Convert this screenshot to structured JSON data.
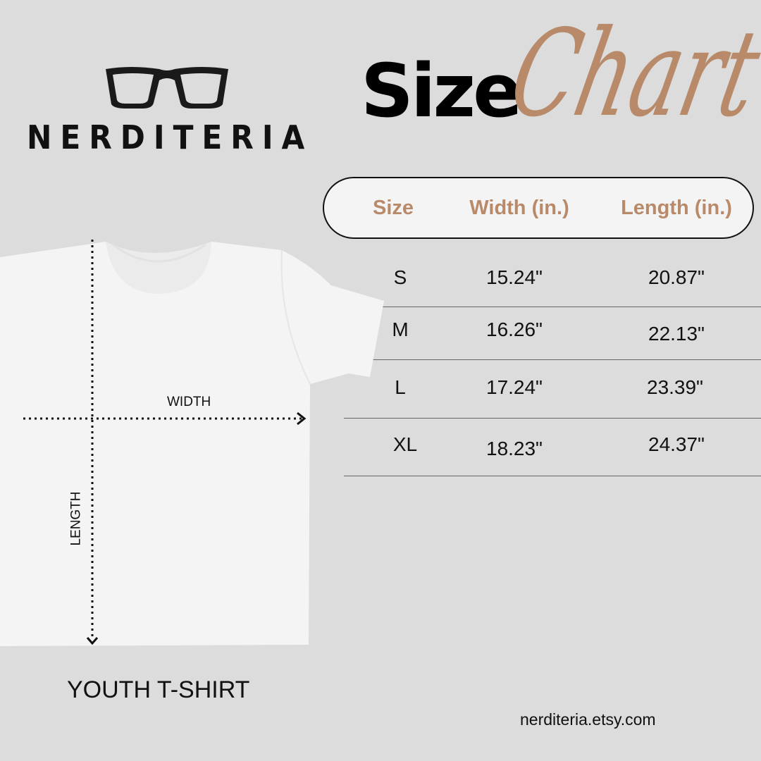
{
  "brand": {
    "name": "NERDITERIA",
    "logo_icon": "glasses-icon"
  },
  "title": {
    "bold": "Size",
    "script": "Chart"
  },
  "colors": {
    "background": "#dcdcdc",
    "accent": "#b88a6a",
    "text": "#111111"
  },
  "table": {
    "headers": [
      "Size",
      "Width (in.)",
      "Length (in.)"
    ],
    "rows": [
      [
        "S",
        "15.24\"",
        "20.87\""
      ],
      [
        "M",
        "16.26\"",
        "22.13\""
      ],
      [
        "L",
        "17.24\"",
        "23.39\""
      ],
      [
        "XL",
        "18.23\"",
        "24.37\""
      ]
    ]
  },
  "diagram": {
    "width_label": "WIDTH",
    "length_label": "LENGTH"
  },
  "product_label": "YOUTH T-SHIRT",
  "website": "nerditeria.etsy.com"
}
